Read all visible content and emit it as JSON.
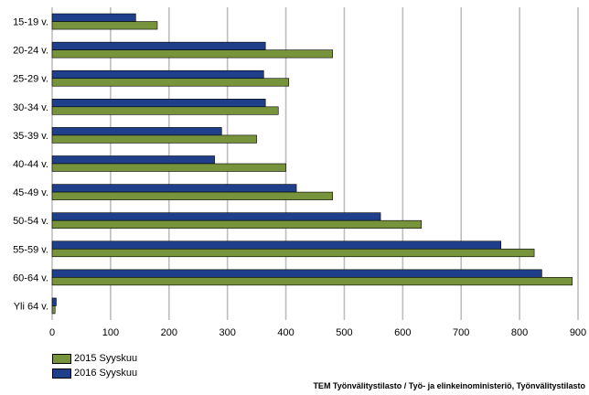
{
  "source": "TEM Työnvälitystilasto / Työ- ja elinkeinoministeriö, Työnvälitystilasto",
  "chart_data": {
    "type": "bar",
    "orientation": "horizontal",
    "categories": [
      "15-19 v.",
      "20-24 v.",
      "25-29 v.",
      "30-34 v.",
      "35-39 v.",
      "40-44 v.",
      "45-49 v.",
      "50-54 v.",
      "55-59 v.",
      "60-64 v.",
      "Yli 64 v."
    ],
    "series": [
      {
        "name": "2015 Syyskuu",
        "color": "#77933c",
        "values": [
          180,
          480,
          405,
          387,
          350,
          400,
          480,
          632,
          825,
          890,
          5
        ]
      },
      {
        "name": "2016 Syyskuu",
        "color": "#1f3f8a",
        "values": [
          143,
          365,
          362,
          365,
          290,
          278,
          418,
          562,
          768,
          838,
          7
        ]
      }
    ],
    "xlim": [
      0,
      900
    ],
    "xticks": [
      0,
      100,
      200,
      300,
      400,
      500,
      600,
      700,
      800,
      900
    ],
    "grid": true,
    "legend_position": "bottom-left"
  }
}
